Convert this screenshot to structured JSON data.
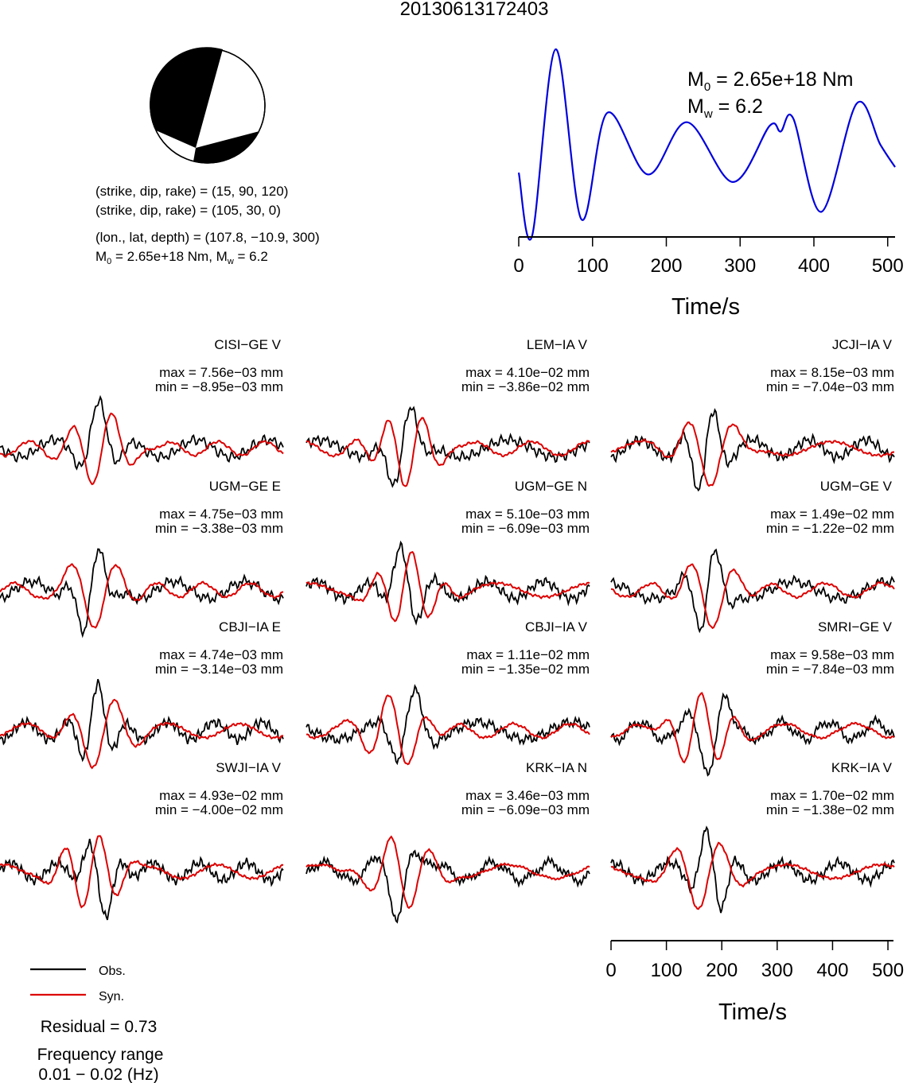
{
  "title": "20130613172403",
  "beachball": {
    "compression_color": "#000000",
    "dilatation_color": "#ffffff"
  },
  "source_info": {
    "plane1": "(strike, dip, rake) = (15, 90, 120)",
    "plane2": "(strike, dip, rake) = (105, 30, 0)",
    "location": "(lon., lat, depth) = (107.8, −10.9, 300)",
    "moment_prefix": "M",
    "moment_sub": "0",
    "moment_value": " = 2.65e+18 Nm, M",
    "mw_sub": "w",
    "mw_value": " = 6.2"
  },
  "stf": {
    "m0_prefix": "M",
    "m0_sub": "0",
    "m0_value": " = 2.65e+18 Nm",
    "mw_prefix": "M",
    "mw_sub": "w",
    "mw_value": " = 6.2",
    "xlabel": "Time/s",
    "color": "#0000dd"
  },
  "chart_data": [
    {
      "type": "line",
      "name": "source-time-function",
      "xlabel": "Time/s",
      "xlim": [
        0,
        510
      ],
      "xticks": [
        0,
        100,
        200,
        300,
        400,
        500
      ],
      "x": [
        0,
        18,
        50,
        85,
        120,
        175,
        228,
        290,
        340,
        355,
        372,
        410,
        458,
        490,
        510
      ],
      "values": [
        0.34,
        0.0,
        1.0,
        0.09,
        0.66,
        0.33,
        0.61,
        0.29,
        0.59,
        0.56,
        0.63,
        0.13,
        0.71,
        0.49,
        0.37
      ]
    },
    {
      "type": "line",
      "name": "waveforms",
      "xlabel": "Time/s",
      "xlim": [
        0,
        510
      ],
      "xticks": [
        0,
        100,
        200,
        300,
        400,
        500
      ],
      "series": [
        {
          "name": "Obs.",
          "color": "#000000"
        },
        {
          "name": "Syn.",
          "color": "#dd0000"
        }
      ],
      "stations": [
        {
          "label": "CISI−GE V",
          "max": "max = 7.56e−03 mm",
          "min": "min = −8.95e−03 mm"
        },
        {
          "label": "LEM−IA V",
          "max": "max = 4.10e−02 mm",
          "min": "min = −3.86e−02 mm"
        },
        {
          "label": "JCJI−IA V",
          "max": "max = 8.15e−03 mm",
          "min": "min = −7.04e−03 mm"
        },
        {
          "label": "UGM−GE E",
          "max": "max = 4.75e−03 mm",
          "min": "min = −3.38e−03 mm"
        },
        {
          "label": "UGM−GE N",
          "max": "max = 5.10e−03 mm",
          "min": "min = −6.09e−03 mm"
        },
        {
          "label": "UGM−GE V",
          "max": "max = 1.49e−02 mm",
          "min": "min = −1.22e−02 mm"
        },
        {
          "label": "CBJI−IA E",
          "max": "max = 4.74e−03 mm",
          "min": "min = −3.14e−03 mm"
        },
        {
          "label": "CBJI−IA V",
          "max": "max = 1.11e−02 mm",
          "min": "min = −1.35e−02 mm"
        },
        {
          "label": "SMRI−GE V",
          "max": "max = 9.58e−03 mm",
          "min": "min = −7.84e−03 mm"
        },
        {
          "label": "SWJI−IA V",
          "max": "max = 4.93e−02 mm",
          "min": "min = −4.00e−02 mm"
        },
        {
          "label": "KRK−IA N",
          "max": "max = 3.46e−03 mm",
          "min": "min = −6.09e−03 mm"
        },
        {
          "label": "KRK−IA V",
          "max": "max = 1.70e−02 mm",
          "min": "min = −1.38e−02 mm"
        }
      ]
    }
  ],
  "legend": {
    "obs": "Obs.",
    "syn": "Syn.",
    "obs_color": "#000000",
    "syn_color": "#dd0000"
  },
  "residual": "Residual = 0.73",
  "freq_title": "Frequency range",
  "freq_value": "0.01 − 0.02 (Hz)"
}
